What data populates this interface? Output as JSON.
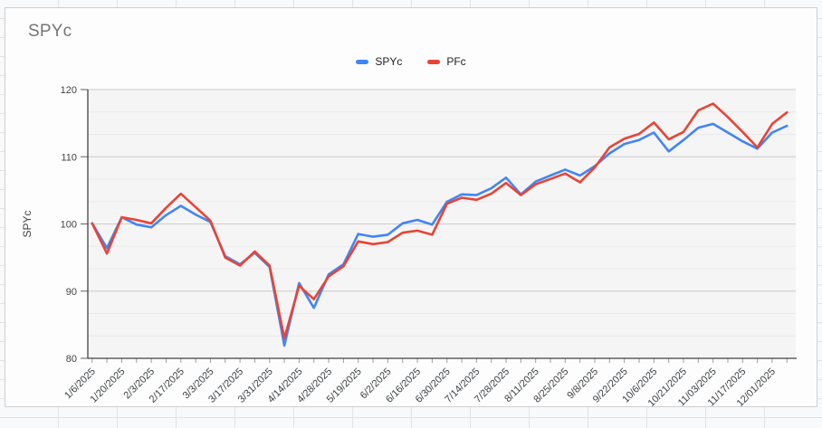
{
  "chart_data": {
    "type": "line",
    "title": "SPYc",
    "ylabel": "SPYc",
    "ylim": [
      80,
      120
    ],
    "y_ticks": [
      80,
      90,
      100,
      110,
      120
    ],
    "minor_gridlines_between_majors": 2,
    "grid": true,
    "legend_position": "top-center",
    "x_label_every_n_points": 2,
    "x_tick_labels": [
      "1/6/2025",
      "1/20/2025",
      "2/3/2025",
      "2/17/2025",
      "3/3/2025",
      "3/17/2025",
      "3/31/2025",
      "4/14/2025",
      "4/28/2025",
      "5/19/2025",
      "6/2/2025",
      "6/16/2025",
      "6/30/2025",
      "7/14/2025",
      "7/28/2025",
      "8/11/2025",
      "8/25/2025",
      "9/8/2025",
      "9/22/2025",
      "10/6/2025",
      "10/21/2025",
      "11/03/2025",
      "11/17/2025",
      "12/01/2025"
    ],
    "series": [
      {
        "name": "SPYc",
        "color": "#4285f4",
        "values": [
          100.1,
          96.4,
          101.0,
          99.9,
          99.5,
          101.3,
          102.7,
          101.4,
          100.3,
          95.2,
          94.0,
          95.7,
          93.6,
          81.9,
          91.2,
          87.5,
          92.5,
          94.0,
          98.5,
          98.1,
          98.4,
          100.1,
          100.6,
          99.9,
          103.3,
          104.4,
          104.3,
          105.3,
          106.9,
          104.4,
          106.3,
          107.2,
          108.1,
          107.2,
          108.6,
          110.5,
          111.9,
          112.5,
          113.6,
          110.8,
          112.5,
          114.3,
          114.9,
          113.6,
          112.3,
          111.2,
          113.6,
          114.6
        ]
      },
      {
        "name": "PFc",
        "color": "#ea4335",
        "values": [
          100.1,
          95.6,
          101.0,
          100.6,
          100.1,
          102.4,
          104.5,
          102.5,
          100.5,
          95.0,
          93.8,
          95.9,
          93.8,
          83.0,
          90.8,
          88.8,
          92.2,
          93.7,
          97.4,
          97.0,
          97.3,
          98.7,
          99.0,
          98.4,
          103.0,
          103.9,
          103.6,
          104.5,
          106.1,
          104.3,
          105.9,
          106.7,
          107.5,
          106.2,
          108.4,
          111.4,
          112.7,
          113.4,
          115.1,
          112.6,
          113.7,
          116.9,
          117.9,
          115.9,
          113.7,
          111.4,
          114.9,
          116.6
        ]
      }
    ]
  },
  "colors": {
    "title": "#757575",
    "axis": "#424242",
    "tick": "#9aa0a6",
    "tick_label": "#3c4043",
    "y_label": "#424242",
    "axis_title": "#424242",
    "gridline_major": "#cccccc",
    "gridline_minor": "#eaeaea",
    "plot_bg": "#f5f5f5",
    "legend_text": "#202124"
  }
}
